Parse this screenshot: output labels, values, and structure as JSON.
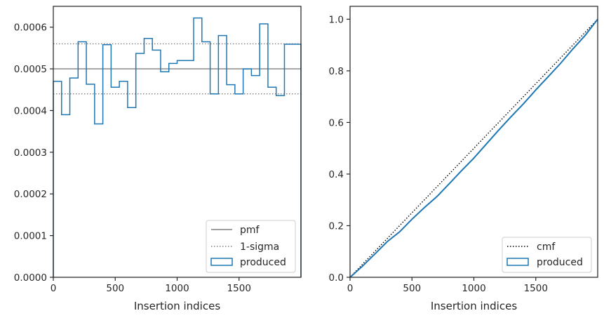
{
  "chart_data": [
    {
      "type": "line",
      "xlabel": "Insertion indices",
      "ylabel": "",
      "xlim": [
        0,
        2000
      ],
      "ylim": [
        0,
        0.00065
      ],
      "xticks": [
        0,
        500,
        1000,
        1500
      ],
      "xtick_labels": [
        "0",
        "500",
        "1000",
        "1500"
      ],
      "yticks": [
        0,
        0.0001,
        0.0002,
        0.0003,
        0.0004,
        0.0005,
        0.0006
      ],
      "ytick_labels": [
        "0.0000",
        "0.0001",
        "0.0002",
        "0.0003",
        "0.0004",
        "0.0005",
        "0.0006"
      ],
      "grid": false,
      "legend_position": "lower-right",
      "hlines": [
        {
          "name": "pmf",
          "y": 0.0005,
          "style": "solid",
          "color": "#808080"
        },
        {
          "name": "1-sigma",
          "y": 0.00056,
          "style": "dotted",
          "color": "#808080"
        },
        {
          "name": "1-sigma",
          "y": 0.00044,
          "style": "dotted",
          "color": "#808080",
          "no_legend": true
        }
      ],
      "series": [
        {
          "name": "produced",
          "kind": "histogram-step",
          "color": "#1f77b4",
          "bin_width": 66.67,
          "x": [
            0,
            66.67,
            133.33,
            200,
            266.67,
            333.33,
            400,
            466.67,
            533.33,
            600,
            666.67,
            733.33,
            800,
            866.67,
            933.33,
            1000,
            1066.67,
            1133.33,
            1200,
            1266.67,
            1333.33,
            1400,
            1466.67,
            1533.33,
            1600,
            1666.67,
            1733.33,
            1800,
            1866.67,
            1933.33
          ],
          "values": [
            0.00047,
            0.00039,
            0.000478,
            0.000565,
            0.000463,
            0.000368,
            0.000558,
            0.000456,
            0.00047,
            0.000407,
            0.000537,
            0.000573,
            0.000545,
            0.000493,
            0.000513,
            0.00052,
            0.00052,
            0.000622,
            0.000565,
            0.00044,
            0.00058,
            0.000462,
            0.00044,
            0.0005,
            0.000484,
            0.000608,
            0.000456,
            0.000436,
            0.000559,
            0.000559
          ]
        }
      ],
      "legend": [
        "pmf",
        "1-sigma",
        "produced"
      ]
    },
    {
      "type": "line",
      "xlabel": "Insertion indices",
      "ylabel": "",
      "xlim": [
        0,
        2000
      ],
      "ylim": [
        0,
        1.05
      ],
      "xticks": [
        0,
        500,
        1000,
        1500
      ],
      "xtick_labels": [
        "0",
        "500",
        "1000",
        "1500"
      ],
      "yticks": [
        0,
        0.2,
        0.4,
        0.6,
        0.8,
        1.0
      ],
      "ytick_labels": [
        "0.0",
        "0.2",
        "0.4",
        "0.6",
        "0.8",
        "1.0"
      ],
      "grid": false,
      "legend_position": "lower-right",
      "series": [
        {
          "name": "cmf",
          "style": "dotted",
          "color": "#000000",
          "x": [
            0,
            2000
          ],
          "y": [
            0,
            1.0
          ]
        },
        {
          "name": "produced",
          "style": "solid",
          "color": "#1f77b4",
          "x": [
            0,
            100,
            200,
            300,
            400,
            500,
            600,
            700,
            800,
            900,
            1000,
            1100,
            1200,
            1300,
            1400,
            1500,
            1600,
            1700,
            1800,
            1900,
            2000
          ],
          "y": [
            0,
            0.043,
            0.09,
            0.138,
            0.176,
            0.225,
            0.27,
            0.312,
            0.362,
            0.413,
            0.462,
            0.516,
            0.57,
            0.622,
            0.672,
            0.726,
            0.777,
            0.829,
            0.885,
            0.938,
            1.0
          ]
        }
      ],
      "legend": [
        "cmf",
        "produced"
      ]
    }
  ]
}
